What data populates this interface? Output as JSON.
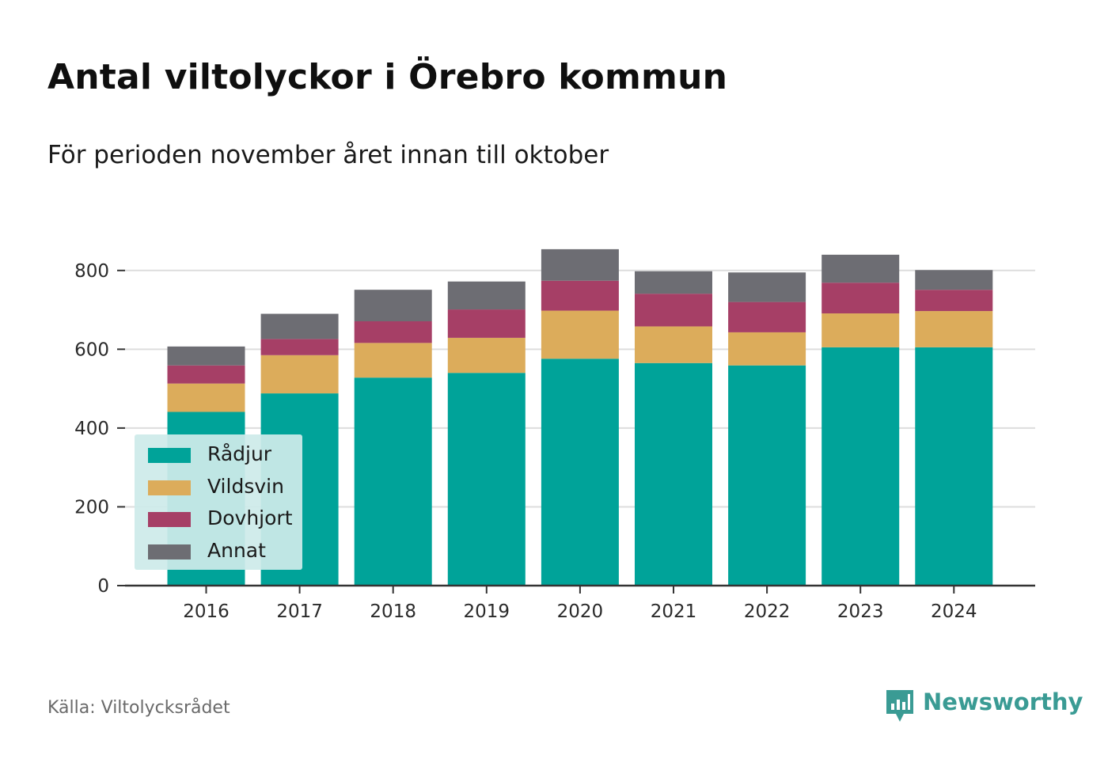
{
  "title": "Antal viltolyckor i Örebro kommun",
  "subtitle": "För perioden november året innan till oktober",
  "source": "Källa: Viltolycksrådet",
  "brand": {
    "name": "Newsworthy",
    "icon": "newsworthy-logo-icon",
    "color": "#3a9b94"
  },
  "chart_data": {
    "type": "bar",
    "stacked": true,
    "categories": [
      "2016",
      "2017",
      "2018",
      "2019",
      "2020",
      "2021",
      "2022",
      "2023",
      "2024"
    ],
    "series": [
      {
        "name": "Rådjur",
        "color": "#00a399",
        "values": [
          441,
          488,
          528,
          540,
          576,
          565,
          559,
          605,
          605
        ]
      },
      {
        "name": "Vildsvin",
        "color": "#dcac5b",
        "values": [
          72,
          97,
          88,
          89,
          122,
          93,
          84,
          86,
          92
        ]
      },
      {
        "name": "Dovhjort",
        "color": "#a63f66",
        "values": [
          46,
          41,
          55,
          72,
          76,
          83,
          77,
          78,
          54
        ]
      },
      {
        "name": "Annat",
        "color": "#6d6d73",
        "values": [
          48,
          64,
          80,
          71,
          80,
          57,
          75,
          71,
          50
        ]
      }
    ],
    "ylim": [
      0,
      900
    ],
    "yticks": [
      0,
      200,
      400,
      600,
      800
    ],
    "xlabel": "",
    "ylabel": "",
    "grid": true,
    "legend_position": "bottom-left"
  }
}
